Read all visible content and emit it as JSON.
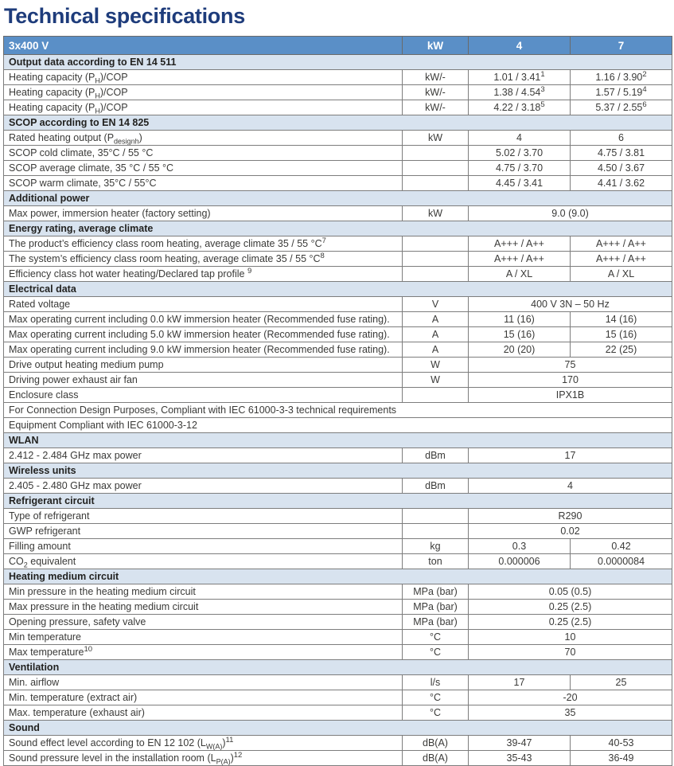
{
  "page": {
    "title": "Technical specifications"
  },
  "colors": {
    "header_bg": "#5a8fc7",
    "section_bg": "#d8e3ef",
    "title": "#1e3c7b",
    "border": "#7d7d7d",
    "text": "#3a3a38"
  },
  "table": {
    "header": {
      "model": "3x400 V",
      "unit_col": "kW",
      "col_a": "4",
      "col_b": "7"
    },
    "rows": [
      {
        "type": "section",
        "label": "Output data according to EN 14 511"
      },
      {
        "type": "data2",
        "label": "Heating capacity (P<sub>H</sub>)/COP",
        "unit": "kW/-",
        "values": [
          "1.01 / 3.41<sup>1</sup>",
          "1.16 / 3.90<sup>2</sup>"
        ]
      },
      {
        "type": "data2",
        "label": "Heating capacity (P<sub>H</sub>)/COP",
        "unit": "kW/-",
        "values": [
          "1.38 / 4.54<sup>3</sup>",
          "1.57 / 5.19<sup>4</sup>"
        ]
      },
      {
        "type": "data2",
        "label": "Heating capacity (P<sub>H</sub>)/COP",
        "unit": "kW/-",
        "values": [
          "4.22 / 3.18<sup>5</sup>",
          "5.37 / 2.55<sup>6</sup>"
        ]
      },
      {
        "type": "section",
        "label": "SCOP according to EN 14 825"
      },
      {
        "type": "data2",
        "label": "Rated heating output (P<sub>designh</sub>)",
        "unit": "kW",
        "values": [
          "4",
          "6"
        ]
      },
      {
        "type": "data2",
        "label": "SCOP cold climate, 35°C / 55 °C",
        "unit": "",
        "values": [
          "5.02 / 3.70",
          "4.75 / 3.81"
        ]
      },
      {
        "type": "data2",
        "label": "SCOP average climate, 35 °C / 55 °C",
        "unit": "",
        "values": [
          "4.75 / 3.70",
          "4.50 / 3.67"
        ]
      },
      {
        "type": "data2",
        "label": "SCOP warm climate, 35°C / 55°C",
        "unit": "",
        "values": [
          "4.45 / 3.41",
          "4.41 / 3.62"
        ]
      },
      {
        "type": "section",
        "label": "Additional power"
      },
      {
        "type": "span",
        "label": "Max power, immersion heater (factory setting)",
        "unit": "kW",
        "value": "9.0 (9.0)"
      },
      {
        "type": "section",
        "label": "Energy rating, average climate"
      },
      {
        "type": "data2",
        "label": "The product’s efficiency class room heating, average climate 35 / 55 °C<sup>7</sup>",
        "unit": "",
        "values": [
          "A+++ / A++",
          "A+++ / A++"
        ]
      },
      {
        "type": "data2",
        "label": "The system’s efficiency class room heating, average climate 35 / 55 °C<sup>8</sup>",
        "unit": "",
        "values": [
          "A+++ / A++",
          "A+++ / A++"
        ]
      },
      {
        "type": "data2",
        "label": "Efficiency class hot water heating/Declared tap profile <sup>9</sup>",
        "unit": "",
        "values": [
          "A / XL",
          "A / XL"
        ]
      },
      {
        "type": "section",
        "label": "Electrical data"
      },
      {
        "type": "span",
        "label": "Rated voltage",
        "unit": "V",
        "value": "400 V 3N – 50 Hz"
      },
      {
        "type": "data2",
        "label": "Max operating current including 0.0 kW immersion heater (Recommended fuse rating).",
        "unit": "A",
        "values": [
          "11 (16)",
          "14 (16)"
        ]
      },
      {
        "type": "data2",
        "label": "Max operating current including 5.0 kW immersion heater (Recommended fuse rating).",
        "unit": "A",
        "values": [
          "15 (16)",
          "15 (16)"
        ]
      },
      {
        "type": "data2",
        "label": "Max operating current including 9.0 kW immersion heater (Recommended fuse rating).",
        "unit": "A",
        "values": [
          "20 (20)",
          "22 (25)"
        ]
      },
      {
        "type": "span",
        "label": "Drive output heating medium pump",
        "unit": "W",
        "value": "75"
      },
      {
        "type": "span",
        "label": "Driving power exhaust air fan",
        "unit": "W",
        "value": "170"
      },
      {
        "type": "span",
        "label": "Enclosure class",
        "unit": "",
        "value": "IPX1B"
      },
      {
        "type": "full",
        "label": "For Connection Design Purposes, Compliant with IEC 61000-3-3 technical requirements"
      },
      {
        "type": "full",
        "label": "Equipment Compliant with IEC 61000-3-12"
      },
      {
        "type": "section",
        "label": "WLAN"
      },
      {
        "type": "span",
        "label": "2.412 - 2.484 GHz max power",
        "unit": "dBm",
        "value": "17"
      },
      {
        "type": "section",
        "label": "Wireless units"
      },
      {
        "type": "span",
        "label": "2.405 - 2.480 GHz max power",
        "unit": "dBm",
        "value": "4"
      },
      {
        "type": "section",
        "label": "Refrigerant circuit"
      },
      {
        "type": "span",
        "label": "Type of refrigerant",
        "unit": "",
        "value": "R290"
      },
      {
        "type": "span",
        "label": "GWP refrigerant",
        "unit": "",
        "value": "0.02"
      },
      {
        "type": "data2",
        "label": "Filling amount",
        "unit": "kg",
        "values": [
          "0.3",
          "0.42"
        ]
      },
      {
        "type": "data2",
        "label": "CO<sub>2</sub> equivalent",
        "unit": "ton",
        "values": [
          "0.000006",
          "0.0000084"
        ]
      },
      {
        "type": "section",
        "label": "Heating medium circuit"
      },
      {
        "type": "span",
        "label": "Min pressure in the heating medium circuit",
        "unit": "MPa (bar)",
        "value": "0.05 (0.5)"
      },
      {
        "type": "span",
        "label": "Max pressure in the heating medium circuit",
        "unit": "MPa (bar)",
        "value": "0.25 (2.5)"
      },
      {
        "type": "span",
        "label": "Opening pressure, safety valve",
        "unit": "MPa (bar)",
        "value": "0.25 (2.5)"
      },
      {
        "type": "span",
        "label": "Min temperature",
        "unit": "°C",
        "value": "10"
      },
      {
        "type": "span",
        "label": "Max temperature<sup>10</sup>",
        "unit": "°C",
        "value": "70"
      },
      {
        "type": "section",
        "label": "Ventilation"
      },
      {
        "type": "data2",
        "label": "Min. airflow",
        "unit": "l/s",
        "values": [
          "17",
          "25"
        ]
      },
      {
        "type": "span",
        "label": "Min. temperature (extract air)",
        "unit": "°C",
        "value": "-20"
      },
      {
        "type": "span",
        "label": "Max. temperature (exhaust air)",
        "unit": "°C",
        "value": "35"
      },
      {
        "type": "section",
        "label": "Sound"
      },
      {
        "type": "data2",
        "label": "Sound effect level according to EN 12 102 (L<sub>W(A)</sub>)<sup>11</sup>",
        "unit": "dB(A)",
        "values": [
          "39-47",
          "40-53"
        ]
      },
      {
        "type": "data2",
        "label": "Sound pressure level in the installation room (L<sub>P(A)</sub>)<sup>12</sup>",
        "unit": "dB(A)",
        "values": [
          "35-43",
          "36-49"
        ]
      }
    ]
  }
}
